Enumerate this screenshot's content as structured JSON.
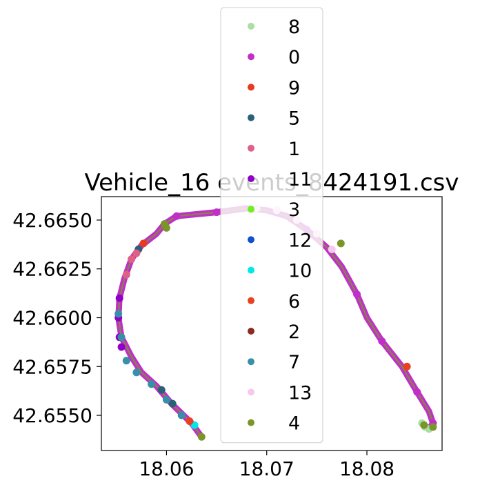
{
  "chart_data": {
    "type": "scatter",
    "title": "Vehicle_16 events_8424191.csv",
    "xlabel": "",
    "ylabel": "",
    "xlim": [
      18.0535,
      18.0875
    ],
    "ylim": [
      42.6532,
      42.6662
    ],
    "x_ticks": [
      "18.06",
      "18.07",
      "18.08"
    ],
    "x_tick_values": [
      18.06,
      18.07,
      18.08
    ],
    "y_ticks": [
      "42.6550",
      "42.6575",
      "42.6600",
      "42.6625",
      "42.6650"
    ],
    "y_tick_values": [
      42.655,
      42.6575,
      42.66,
      42.6625,
      42.665
    ],
    "grid": false,
    "legend_placement": "top-center",
    "route": [
      [
        18.0635,
        42.6539
      ],
      [
        18.0625,
        42.6546
      ],
      [
        18.0605,
        42.6556
      ],
      [
        18.059,
        42.6565
      ],
      [
        18.0575,
        42.6572
      ],
      [
        18.0565,
        42.658
      ],
      [
        18.0555,
        42.659
      ],
      [
        18.0552,
        42.66
      ],
      [
        18.0553,
        42.661
      ],
      [
        18.0558,
        42.662
      ],
      [
        18.0565,
        42.663
      ],
      [
        18.0575,
        42.6637
      ],
      [
        18.059,
        42.6643
      ],
      [
        18.0598,
        42.6648
      ],
      [
        18.061,
        42.6652
      ],
      [
        18.065,
        42.6654
      ],
      [
        18.068,
        42.6656
      ],
      [
        18.07,
        42.6655
      ],
      [
        18.072,
        42.6652
      ],
      [
        18.074,
        42.6645
      ],
      [
        18.076,
        42.6636
      ],
      [
        18.0775,
        42.6626
      ],
      [
        18.079,
        42.6612
      ],
      [
        18.08,
        42.66
      ],
      [
        18.0815,
        42.6588
      ],
      [
        18.0835,
        42.6575
      ],
      [
        18.085,
        42.6562
      ],
      [
        18.0862,
        42.6552
      ],
      [
        18.0866,
        42.6546
      ],
      [
        18.0862,
        42.6543
      ],
      [
        18.0855,
        42.6546
      ]
    ],
    "series": [
      {
        "name": "8",
        "color": "#a8e0a0",
        "points": [
          [
            18.0855,
            42.6546
          ],
          [
            18.0858,
            42.6544
          ],
          [
            18.0862,
            42.6543
          ]
        ]
      },
      {
        "name": "0",
        "color": "#c030c8",
        "points": [
          [
            18.061,
            42.6652
          ],
          [
            18.065,
            42.6654
          ],
          [
            18.074,
            42.6645
          ],
          [
            18.079,
            42.6612
          ],
          [
            18.0815,
            42.6588
          ],
          [
            18.085,
            42.6562
          ],
          [
            18.0866,
            42.6546
          ]
        ]
      },
      {
        "name": "9",
        "color": "#e83a1e",
        "points": [
          [
            18.0577,
            42.6638
          ]
        ]
      },
      {
        "name": "5",
        "color": "#2a6078",
        "points": [
          [
            18.0572,
            42.6635
          ],
          [
            18.0595,
            42.6563
          ],
          [
            18.0606,
            42.6556
          ]
        ]
      },
      {
        "name": "1",
        "color": "#e06088",
        "points": [
          [
            18.056,
            42.6622
          ],
          [
            18.0565,
            42.663
          ],
          [
            18.057,
            42.6633
          ]
        ]
      },
      {
        "name": "11",
        "color": "#9000c8",
        "points": [
          [
            18.0553,
            42.661
          ],
          [
            18.0552,
            42.66
          ],
          [
            18.0553,
            42.659
          ],
          [
            18.0555,
            42.6585
          ]
        ]
      },
      {
        "name": "3",
        "color": "#70f020",
        "points": []
      },
      {
        "name": "12",
        "color": "#1050d0",
        "points": []
      },
      {
        "name": "10",
        "color": "#00e8e8",
        "points": [
          [
            18.0628,
            42.6545
          ]
        ]
      },
      {
        "name": "6",
        "color": "#e84020",
        "points": [
          [
            18.084,
            42.6575
          ],
          [
            18.0623,
            42.6547
          ]
        ]
      },
      {
        "name": "2",
        "color": "#8b2a20",
        "points": []
      },
      {
        "name": "7",
        "color": "#3890a8",
        "points": [
          [
            18.0552,
            42.6602
          ],
          [
            18.0555,
            42.659
          ],
          [
            18.056,
            42.6578
          ],
          [
            18.057,
            42.6572
          ],
          [
            18.0585,
            42.6566
          ],
          [
            18.06,
            42.6558
          ],
          [
            18.0615,
            42.655
          ]
        ]
      },
      {
        "name": "13",
        "color": "#f8c8ec",
        "points": [
          [
            18.069,
            42.6656
          ],
          [
            18.071,
            42.6655
          ],
          [
            18.073,
            42.665
          ],
          [
            18.075,
            42.6643
          ],
          [
            18.0765,
            42.6635
          ]
        ]
      },
      {
        "name": "4",
        "color": "#7a9628",
        "points": [
          [
            18.0598,
            42.6648
          ],
          [
            18.06,
            42.6646
          ],
          [
            18.0774,
            42.6638
          ],
          [
            18.0857,
            42.6545
          ],
          [
            18.0866,
            42.6544
          ],
          [
            18.0635,
            42.6539
          ]
        ]
      }
    ]
  }
}
